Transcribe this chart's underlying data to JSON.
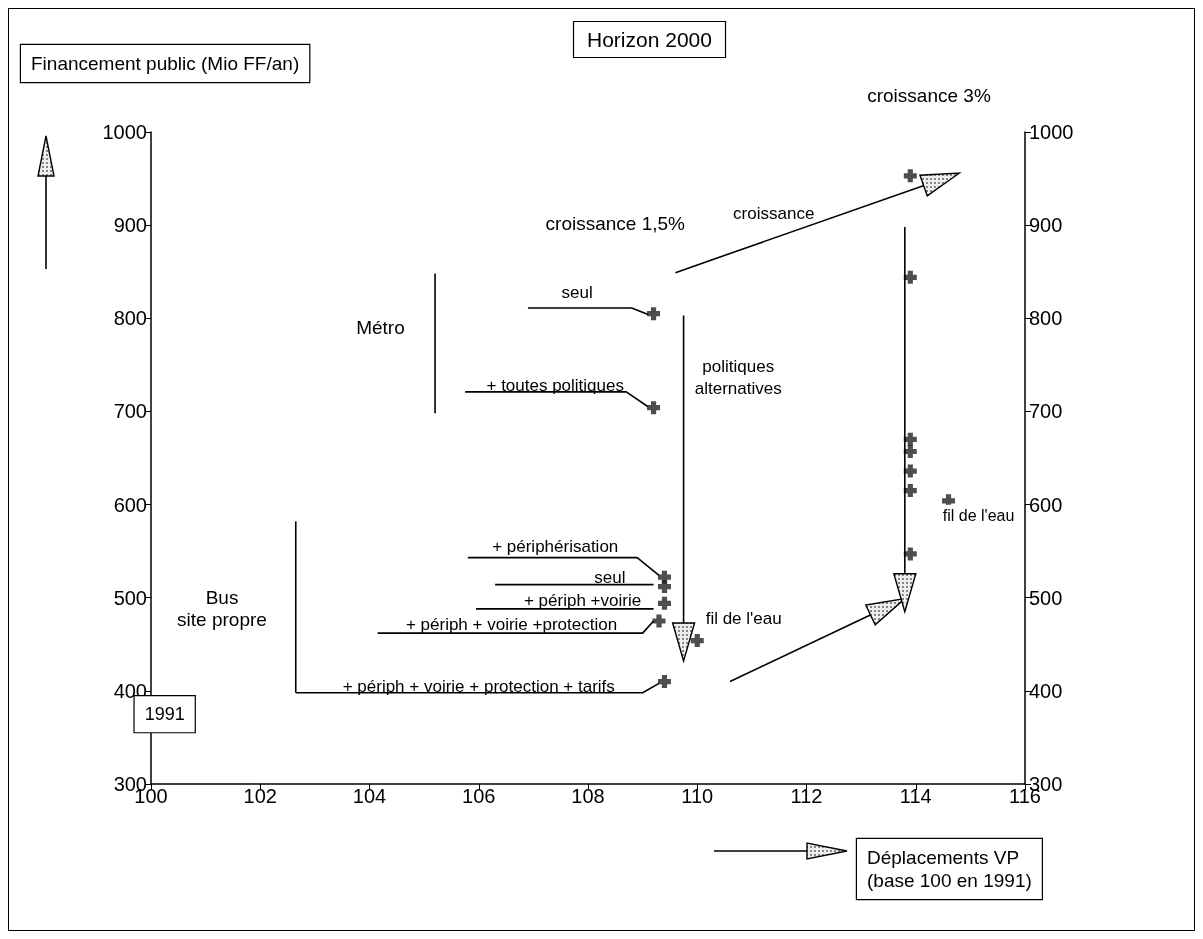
{
  "chart_data": {
    "type": "scatter",
    "title": "Horizon 2000",
    "xlabel": "Déplacements VP\n(base 100 en 1991)",
    "ylabel": "Financement public (Mio FF/an)",
    "x": [
      109.2,
      109.2,
      109.4,
      109.4,
      109.4,
      109.3,
      110.0,
      109.4,
      113.9,
      113.9,
      113.9,
      113.9,
      113.9,
      113.9,
      114.6,
      113.9
    ],
    "values": [
      805,
      704,
      522,
      512,
      494,
      475,
      454,
      410,
      953,
      844,
      670,
      657,
      636,
      615,
      604,
      547
    ],
    "color": "#222222",
    "marker": "cross",
    "xlim": [
      100,
      116
    ],
    "xticks": [
      100,
      102,
      104,
      106,
      108,
      110,
      112,
      114,
      116
    ],
    "ylim": [
      300,
      1000
    ],
    "yticks": [
      300,
      400,
      500,
      600,
      700,
      800,
      900,
      1000
    ],
    "y2lim": [
      300,
      1000
    ],
    "y2ticks": [
      300,
      400,
      500,
      600,
      700,
      800,
      900,
      1000
    ],
    "grid": false,
    "annotations": [
      "croissance 3%",
      "croissance 1,5%",
      "croissance",
      "Métro",
      {
        "text": "seul",
        "x": 109.2,
        "y": 805
      },
      {
        "text": "+ toutes politiques",
        "x": 109.2,
        "y": 704
      },
      "politiques\nalternatives",
      {
        "text": "+ périphérisation",
        "x": 109.4,
        "y": 522
      },
      {
        "text": "seul",
        "x": 109.4,
        "y": 512
      },
      {
        "text": "+ périph +voirie",
        "x": 109.4,
        "y": 494
      },
      {
        "text": "+ périph + voirie +protection",
        "x": 109.3,
        "y": 475
      },
      {
        "text": "+ périph + voirie + protection + tarifs",
        "x": 109.4,
        "y": 410
      },
      "Bus\nsite propre",
      {
        "text": "fil de l'eau",
        "x": 110.0,
        "y": 454
      },
      {
        "text": "fil de l'eau",
        "x": 114.6,
        "y": 604
      },
      "1991"
    ]
  }
}
